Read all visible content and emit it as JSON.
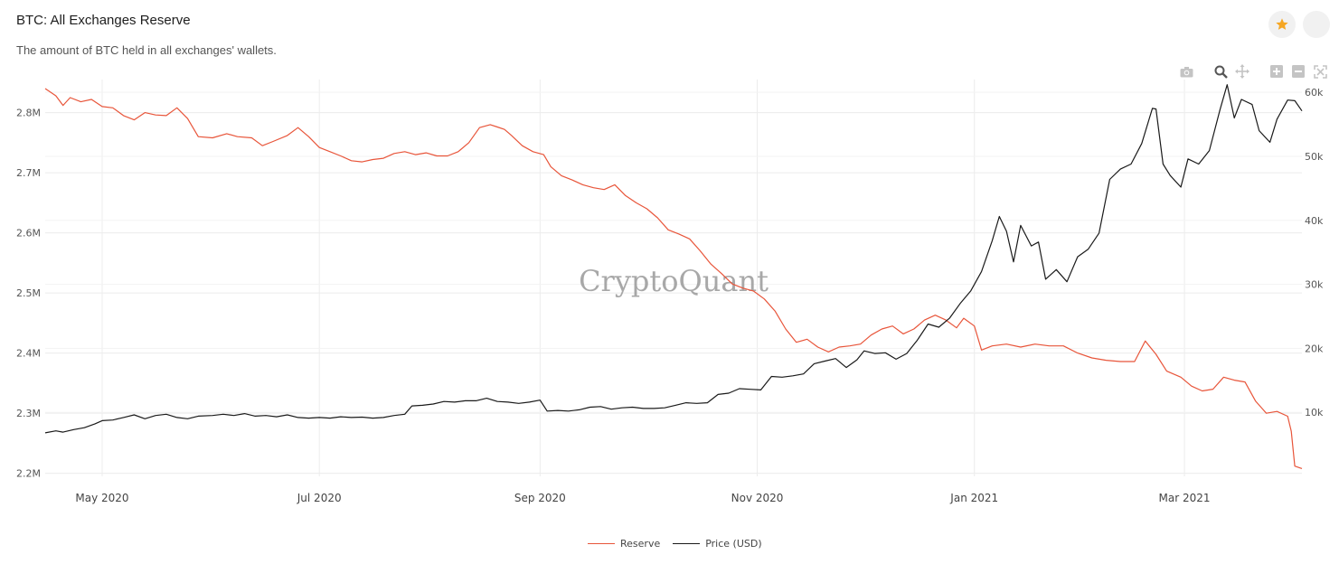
{
  "header": {
    "title": "BTC: All Exchanges Reserve",
    "subtitle": "The amount of BTC held in all exchanges' wallets."
  },
  "toolbar": {
    "icons": [
      "camera-icon",
      "zoom-icon",
      "pan-icon",
      "zoom-in-icon",
      "zoom-out-icon",
      "reset-axes-icon"
    ],
    "favorite_color": "#f5a623"
  },
  "watermark": "CryptoQuant",
  "colors": {
    "reserve": "#e8553a",
    "price": "#1a1a1a",
    "grid": "#ececec"
  },
  "chart_data": {
    "type": "line",
    "x_range": [
      "2020-04-15",
      "2021-04-03"
    ],
    "x_ticks": [
      {
        "date": "2020-05-01",
        "label": "May 2020"
      },
      {
        "date": "2020-07-01",
        "label": "Jul 2020"
      },
      {
        "date": "2020-09-01",
        "label": "Sep 2020"
      },
      {
        "date": "2020-11-01",
        "label": "Nov 2020"
      },
      {
        "date": "2021-01-01",
        "label": "Jan 2021"
      },
      {
        "date": "2021-03-01",
        "label": "Mar 2021"
      }
    ],
    "y_left": {
      "range": [
        2195000,
        2855000
      ],
      "ticks": [
        {
          "v": 2200000,
          "label": "2.2M"
        },
        {
          "v": 2300000,
          "label": "2.3M"
        },
        {
          "v": 2400000,
          "label": "2.4M"
        },
        {
          "v": 2500000,
          "label": "2.5M"
        },
        {
          "v": 2600000,
          "label": "2.6M"
        },
        {
          "v": 2700000,
          "label": "2.7M"
        },
        {
          "v": 2800000,
          "label": "2.8M"
        }
      ]
    },
    "y_right": {
      "range": [
        0,
        62000
      ],
      "ticks": [
        {
          "v": 10000,
          "label": "10k"
        },
        {
          "v": 20000,
          "label": "20k"
        },
        {
          "v": 30000,
          "label": "30k"
        },
        {
          "v": 40000,
          "label": "40k"
        },
        {
          "v": 50000,
          "label": "50k"
        },
        {
          "v": 60000,
          "label": "60k"
        }
      ]
    },
    "series": [
      {
        "name": "Reserve",
        "axis": "left",
        "points": [
          [
            "2020-04-15",
            2840000
          ],
          [
            "2020-04-18",
            2828000
          ],
          [
            "2020-04-20",
            2812000
          ],
          [
            "2020-04-22",
            2825000
          ],
          [
            "2020-04-25",
            2818000
          ],
          [
            "2020-04-28",
            2822000
          ],
          [
            "2020-05-01",
            2810000
          ],
          [
            "2020-05-04",
            2808000
          ],
          [
            "2020-05-07",
            2795000
          ],
          [
            "2020-05-10",
            2788000
          ],
          [
            "2020-05-13",
            2800000
          ],
          [
            "2020-05-16",
            2796000
          ],
          [
            "2020-05-19",
            2795000
          ],
          [
            "2020-05-22",
            2808000
          ],
          [
            "2020-05-25",
            2790000
          ],
          [
            "2020-05-28",
            2760000
          ],
          [
            "2020-06-01",
            2758000
          ],
          [
            "2020-06-05",
            2765000
          ],
          [
            "2020-06-08",
            2760000
          ],
          [
            "2020-06-12",
            2758000
          ],
          [
            "2020-06-15",
            2745000
          ],
          [
            "2020-06-18",
            2752000
          ],
          [
            "2020-06-22",
            2762000
          ],
          [
            "2020-06-25",
            2775000
          ],
          [
            "2020-06-28",
            2760000
          ],
          [
            "2020-07-01",
            2742000
          ],
          [
            "2020-07-04",
            2735000
          ],
          [
            "2020-07-07",
            2728000
          ],
          [
            "2020-07-10",
            2720000
          ],
          [
            "2020-07-13",
            2718000
          ],
          [
            "2020-07-16",
            2722000
          ],
          [
            "2020-07-19",
            2724000
          ],
          [
            "2020-07-22",
            2732000
          ],
          [
            "2020-07-25",
            2735000
          ],
          [
            "2020-07-28",
            2730000
          ],
          [
            "2020-07-31",
            2733000
          ],
          [
            "2020-08-03",
            2728000
          ],
          [
            "2020-08-06",
            2728000
          ],
          [
            "2020-08-09",
            2735000
          ],
          [
            "2020-08-12",
            2750000
          ],
          [
            "2020-08-15",
            2775000
          ],
          [
            "2020-08-18",
            2780000
          ],
          [
            "2020-08-20",
            2776000
          ],
          [
            "2020-08-22",
            2772000
          ],
          [
            "2020-08-24",
            2762000
          ],
          [
            "2020-08-27",
            2745000
          ],
          [
            "2020-08-30",
            2735000
          ],
          [
            "2020-09-02",
            2730000
          ],
          [
            "2020-09-04",
            2710000
          ],
          [
            "2020-09-07",
            2695000
          ],
          [
            "2020-09-10",
            2688000
          ],
          [
            "2020-09-13",
            2680000
          ],
          [
            "2020-09-16",
            2675000
          ],
          [
            "2020-09-19",
            2672000
          ],
          [
            "2020-09-22",
            2680000
          ],
          [
            "2020-09-25",
            2662000
          ],
          [
            "2020-09-28",
            2650000
          ],
          [
            "2020-10-01",
            2640000
          ],
          [
            "2020-10-04",
            2625000
          ],
          [
            "2020-10-07",
            2605000
          ],
          [
            "2020-10-10",
            2598000
          ],
          [
            "2020-10-13",
            2590000
          ],
          [
            "2020-10-16",
            2570000
          ],
          [
            "2020-10-19",
            2548000
          ],
          [
            "2020-10-22",
            2532000
          ],
          [
            "2020-10-25",
            2515000
          ],
          [
            "2020-10-28",
            2508000
          ],
          [
            "2020-10-31",
            2503000
          ],
          [
            "2020-11-03",
            2490000
          ],
          [
            "2020-11-06",
            2470000
          ],
          [
            "2020-11-09",
            2440000
          ],
          [
            "2020-11-12",
            2418000
          ],
          [
            "2020-11-15",
            2423000
          ],
          [
            "2020-11-18",
            2410000
          ],
          [
            "2020-11-21",
            2402000
          ],
          [
            "2020-11-24",
            2410000
          ],
          [
            "2020-11-27",
            2412000
          ],
          [
            "2020-11-30",
            2415000
          ],
          [
            "2020-12-03",
            2430000
          ],
          [
            "2020-12-06",
            2440000
          ],
          [
            "2020-12-09",
            2445000
          ],
          [
            "2020-12-12",
            2432000
          ],
          [
            "2020-12-15",
            2440000
          ],
          [
            "2020-12-18",
            2455000
          ],
          [
            "2020-12-21",
            2463000
          ],
          [
            "2020-12-24",
            2455000
          ],
          [
            "2020-12-27",
            2442000
          ],
          [
            "2020-12-29",
            2458000
          ],
          [
            "2021-01-01",
            2445000
          ],
          [
            "2021-01-03",
            2405000
          ],
          [
            "2021-01-06",
            2412000
          ],
          [
            "2021-01-10",
            2415000
          ],
          [
            "2021-01-14",
            2410000
          ],
          [
            "2021-01-18",
            2415000
          ],
          [
            "2021-01-22",
            2412000
          ],
          [
            "2021-01-26",
            2412000
          ],
          [
            "2021-01-30",
            2400000
          ],
          [
            "2021-02-03",
            2392000
          ],
          [
            "2021-02-07",
            2388000
          ],
          [
            "2021-02-11",
            2386000
          ],
          [
            "2021-02-15",
            2386000
          ],
          [
            "2021-02-18",
            2420000
          ],
          [
            "2021-02-21",
            2398000
          ],
          [
            "2021-02-24",
            2370000
          ],
          [
            "2021-02-28",
            2360000
          ],
          [
            "2021-03-03",
            2345000
          ],
          [
            "2021-03-06",
            2337000
          ],
          [
            "2021-03-09",
            2340000
          ],
          [
            "2021-03-12",
            2360000
          ],
          [
            "2021-03-15",
            2355000
          ],
          [
            "2021-03-18",
            2352000
          ],
          [
            "2021-03-21",
            2320000
          ],
          [
            "2021-03-24",
            2300000
          ],
          [
            "2021-03-27",
            2303000
          ],
          [
            "2021-03-30",
            2295000
          ],
          [
            "2021-03-31",
            2270000
          ],
          [
            "2021-04-01",
            2212000
          ],
          [
            "2021-04-03",
            2208000
          ]
        ]
      },
      {
        "name": "Price (USD)",
        "axis": "right",
        "points": [
          [
            "2020-04-15",
            6800
          ],
          [
            "2020-04-18",
            7100
          ],
          [
            "2020-04-20",
            6900
          ],
          [
            "2020-04-23",
            7300
          ],
          [
            "2020-04-26",
            7600
          ],
          [
            "2020-04-29",
            8200
          ],
          [
            "2020-05-01",
            8700
          ],
          [
            "2020-05-04",
            8800
          ],
          [
            "2020-05-07",
            9200
          ],
          [
            "2020-05-10",
            9600
          ],
          [
            "2020-05-13",
            9000
          ],
          [
            "2020-05-16",
            9500
          ],
          [
            "2020-05-19",
            9700
          ],
          [
            "2020-05-22",
            9200
          ],
          [
            "2020-05-25",
            9000
          ],
          [
            "2020-05-28",
            9400
          ],
          [
            "2020-06-01",
            9500
          ],
          [
            "2020-06-04",
            9700
          ],
          [
            "2020-06-07",
            9500
          ],
          [
            "2020-06-10",
            9800
          ],
          [
            "2020-06-13",
            9400
          ],
          [
            "2020-06-16",
            9500
          ],
          [
            "2020-06-19",
            9300
          ],
          [
            "2020-06-22",
            9600
          ],
          [
            "2020-06-25",
            9200
          ],
          [
            "2020-06-28",
            9100
          ],
          [
            "2020-07-01",
            9200
          ],
          [
            "2020-07-04",
            9100
          ],
          [
            "2020-07-07",
            9300
          ],
          [
            "2020-07-10",
            9200
          ],
          [
            "2020-07-13",
            9250
          ],
          [
            "2020-07-16",
            9100
          ],
          [
            "2020-07-19",
            9200
          ],
          [
            "2020-07-22",
            9500
          ],
          [
            "2020-07-25",
            9700
          ],
          [
            "2020-07-27",
            11000
          ],
          [
            "2020-07-30",
            11100
          ],
          [
            "2020-08-02",
            11300
          ],
          [
            "2020-08-05",
            11700
          ],
          [
            "2020-08-08",
            11600
          ],
          [
            "2020-08-11",
            11800
          ],
          [
            "2020-08-14",
            11800
          ],
          [
            "2020-08-17",
            12200
          ],
          [
            "2020-08-20",
            11700
          ],
          [
            "2020-08-23",
            11600
          ],
          [
            "2020-08-26",
            11400
          ],
          [
            "2020-08-29",
            11600
          ],
          [
            "2020-09-01",
            11900
          ],
          [
            "2020-09-03",
            10200
          ],
          [
            "2020-09-06",
            10300
          ],
          [
            "2020-09-09",
            10200
          ],
          [
            "2020-09-12",
            10400
          ],
          [
            "2020-09-15",
            10800
          ],
          [
            "2020-09-18",
            10900
          ],
          [
            "2020-09-21",
            10500
          ],
          [
            "2020-09-24",
            10700
          ],
          [
            "2020-09-27",
            10800
          ],
          [
            "2020-09-30",
            10600
          ],
          [
            "2020-10-03",
            10600
          ],
          [
            "2020-10-06",
            10700
          ],
          [
            "2020-10-09",
            11100
          ],
          [
            "2020-10-12",
            11500
          ],
          [
            "2020-10-15",
            11400
          ],
          [
            "2020-10-18",
            11500
          ],
          [
            "2020-10-21",
            12800
          ],
          [
            "2020-10-24",
            13000
          ],
          [
            "2020-10-27",
            13700
          ],
          [
            "2020-10-30",
            13600
          ],
          [
            "2020-11-02",
            13500
          ],
          [
            "2020-11-05",
            15600
          ],
          [
            "2020-11-08",
            15500
          ],
          [
            "2020-11-11",
            15700
          ],
          [
            "2020-11-14",
            16000
          ],
          [
            "2020-11-17",
            17600
          ],
          [
            "2020-11-20",
            18000
          ],
          [
            "2020-11-23",
            18400
          ],
          [
            "2020-11-26",
            17000
          ],
          [
            "2020-11-29",
            18200
          ],
          [
            "2020-12-01",
            19600
          ],
          [
            "2020-12-04",
            19200
          ],
          [
            "2020-12-07",
            19300
          ],
          [
            "2020-12-10",
            18300
          ],
          [
            "2020-12-13",
            19200
          ],
          [
            "2020-12-16",
            21300
          ],
          [
            "2020-12-19",
            23800
          ],
          [
            "2020-12-22",
            23300
          ],
          [
            "2020-12-25",
            24700
          ],
          [
            "2020-12-28",
            27000
          ],
          [
            "2020-12-31",
            29000
          ],
          [
            "2021-01-03",
            32000
          ],
          [
            "2021-01-06",
            36800
          ],
          [
            "2021-01-08",
            40600
          ],
          [
            "2021-01-10",
            38300
          ],
          [
            "2021-01-12",
            33500
          ],
          [
            "2021-01-14",
            39200
          ],
          [
            "2021-01-17",
            36000
          ],
          [
            "2021-01-19",
            36600
          ],
          [
            "2021-01-21",
            30800
          ],
          [
            "2021-01-24",
            32300
          ],
          [
            "2021-01-27",
            30400
          ],
          [
            "2021-01-30",
            34300
          ],
          [
            "2021-02-02",
            35500
          ],
          [
            "2021-02-05",
            38000
          ],
          [
            "2021-02-08",
            46400
          ],
          [
            "2021-02-11",
            48000
          ],
          [
            "2021-02-14",
            48800
          ],
          [
            "2021-02-17",
            52000
          ],
          [
            "2021-02-20",
            57500
          ],
          [
            "2021-02-21",
            57400
          ],
          [
            "2021-02-23",
            48800
          ],
          [
            "2021-02-25",
            47000
          ],
          [
            "2021-02-28",
            45200
          ],
          [
            "2021-03-02",
            49600
          ],
          [
            "2021-03-05",
            48800
          ],
          [
            "2021-03-08",
            50900
          ],
          [
            "2021-03-11",
            57300
          ],
          [
            "2021-03-13",
            61200
          ],
          [
            "2021-03-15",
            56000
          ],
          [
            "2021-03-17",
            58900
          ],
          [
            "2021-03-20",
            58100
          ],
          [
            "2021-03-22",
            54000
          ],
          [
            "2021-03-25",
            52200
          ],
          [
            "2021-03-27",
            55800
          ],
          [
            "2021-03-30",
            58800
          ],
          [
            "2021-04-01",
            58700
          ],
          [
            "2021-04-03",
            57100
          ]
        ]
      }
    ]
  },
  "legend": [
    {
      "label": "Reserve",
      "color": "#e8553a"
    },
    {
      "label": "Price (USD)",
      "color": "#1a1a1a"
    }
  ]
}
